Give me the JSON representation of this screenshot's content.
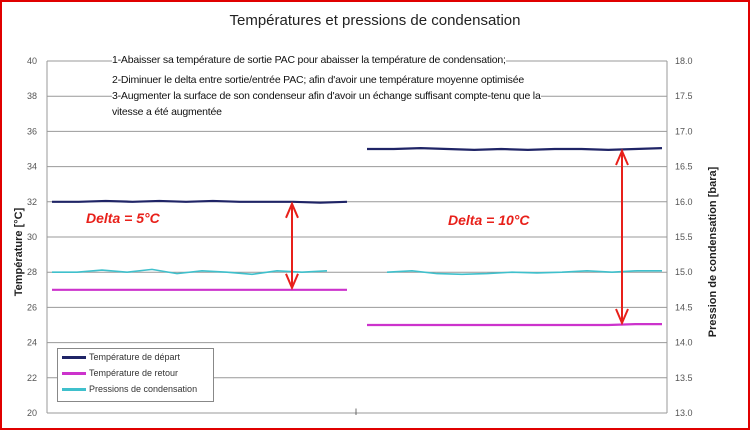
{
  "chart_data": {
    "type": "line",
    "title": "Températures et pressions de condensation",
    "ylabel": "Température [°C]",
    "y2label": "Pression de condensation [bara]",
    "ylim": [
      20,
      40
    ],
    "y2lim": [
      13.0,
      18.0
    ],
    "yticks": [
      "40",
      "38",
      "36",
      "34",
      "32",
      "30",
      "28",
      "26",
      "24",
      "22",
      "20"
    ],
    "y2ticks": [
      "18.0",
      "17.5",
      "17.0",
      "16.5",
      "16.0",
      "15.5",
      "15.0",
      "14.5",
      "14.0",
      "13.5",
      "13.0"
    ],
    "xtick": "I",
    "series": [
      {
        "name": "Température de départ",
        "color": "#1f2466",
        "segments": [
          [
            32.0,
            32.0,
            32.05,
            32.0,
            32.05,
            32.0,
            32.05,
            32.0,
            32.0,
            32.0,
            31.95,
            32.0
          ],
          [
            35.0,
            35.0,
            35.05,
            35.0,
            34.95,
            35.0,
            34.95,
            35.0,
            35.0,
            34.95,
            35.0,
            35.05
          ]
        ]
      },
      {
        "name": "Température de retour",
        "color": "#cc33cc",
        "segments": [
          [
            27.0,
            27.0,
            27.0,
            27.0,
            27.0,
            27.0,
            27.0,
            27.0,
            27.0,
            27.0,
            27.0,
            27.0
          ],
          [
            25.0,
            25.0,
            25.0,
            25.0,
            25.0,
            25.0,
            25.0,
            25.0,
            25.0,
            25.0,
            25.05,
            25.05
          ]
        ]
      },
      {
        "name": "Pressions de condensation",
        "color": "#3fc0cc",
        "axis": "right",
        "segments": [
          [
            15.0,
            15.0,
            15.03,
            15.0,
            15.04,
            14.98,
            15.02,
            15.0,
            14.97,
            15.02,
            15.0,
            15.02
          ],
          [
            15.0,
            15.02,
            14.98,
            14.97,
            14.98,
            15.0,
            14.99,
            15.0,
            15.02,
            15.0,
            15.02,
            15.02
          ]
        ]
      }
    ],
    "annotations": [
      {
        "text": "Delta = 5°C",
        "from": 32,
        "to": 27
      },
      {
        "text": "Delta = 10°C",
        "from": 35,
        "to": 25
      }
    ],
    "notes": [
      "1-Abaisser sa température de sortie PAC pour abaisser la température de condensation;",
      "2-Diminuer le delta entre sortie/entrée PAC; afin d'avoir une température moyenne optimisée",
      "3-Augmenter la surface de son condenseur afin d'avoir un échange suffisant compte-tenu que la",
      "vitesse a été augmentée"
    ],
    "legend_position": "bottom-left",
    "grid": true
  }
}
